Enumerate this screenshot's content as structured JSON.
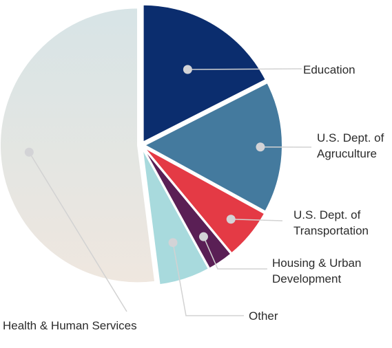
{
  "chart_data": {
    "type": "pie",
    "title": "",
    "legend": "none",
    "slices": [
      {
        "label": "Education",
        "value": 17.5,
        "color": "#0b2d6e"
      },
      {
        "label": "U.S. Dept. of Agruculture",
        "value": 15.5,
        "color": "#447a9e"
      },
      {
        "label": "U.S. Dept. of Transportation",
        "value": 6.0,
        "color": "#e43a45"
      },
      {
        "label": "Housing & Urban Development",
        "value": 3.0,
        "color": "#5a1f55"
      },
      {
        "label": "Other",
        "value": 6.0,
        "color": "#a8dadd"
      },
      {
        "label": "Health & Human Services",
        "value": 52.0,
        "color": "#dfe4e2"
      }
    ]
  }
}
